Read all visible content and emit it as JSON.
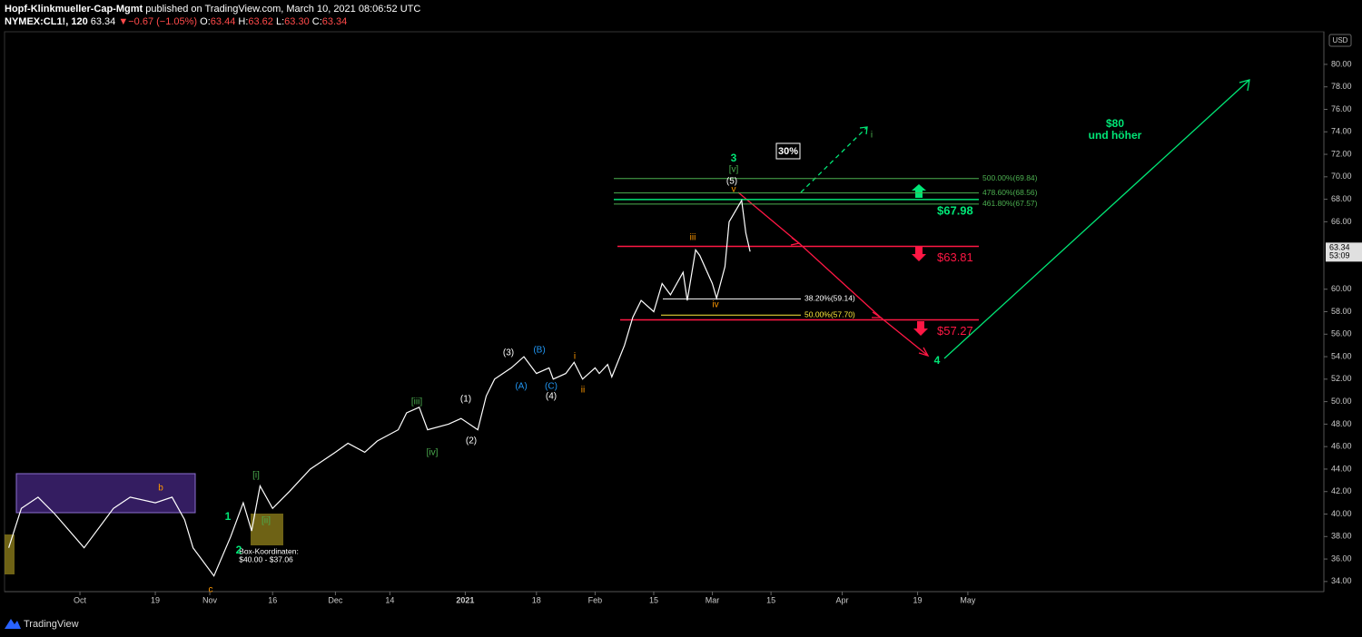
{
  "header": {
    "author": "Hopf-Klinkmueller-Cap-Mgmt",
    "published": "published on TradingView.com, March 10, 2021 08:06:52 UTC",
    "symbol": "NYMEX:CL1!, 120",
    "last": "63.34",
    "arrow": "▼",
    "change": "−0.67 (−1.05%)",
    "ohlc": [
      {
        "label": "O:",
        "value": "63.44"
      },
      {
        "label": "H:",
        "value": "63.62"
      },
      {
        "label": "L:",
        "value": "63.30"
      },
      {
        "label": "C:",
        "value": "63.34"
      }
    ]
  },
  "chart_data": {
    "type": "line",
    "color": "#ffffff",
    "x": [
      "2020-09-14",
      "2020-09-17",
      "2020-09-21",
      "2020-09-25",
      "2020-10-02",
      "2020-10-09",
      "2020-10-13",
      "2020-10-19",
      "2020-10-23",
      "2020-10-26",
      "2020-10-28",
      "2020-11-02",
      "2020-11-06",
      "2020-11-09",
      "2020-11-11",
      "2020-11-13",
      "2020-11-16",
      "2020-11-20",
      "2020-11-25",
      "2020-12-01",
      "2020-12-04",
      "2020-12-08",
      "2020-12-11",
      "2020-12-16",
      "2020-12-18",
      "2020-12-21",
      "2020-12-23",
      "2020-12-28",
      "2020-12-31",
      "2021-01-04",
      "2021-01-06",
      "2021-01-08",
      "2021-01-12",
      "2021-01-15",
      "2021-01-18",
      "2021-01-21",
      "2021-01-22",
      "2021-01-25",
      "2021-01-27",
      "2021-01-29",
      "2021-02-01",
      "2021-02-02",
      "2021-02-04",
      "2021-02-05",
      "2021-02-08",
      "2021-02-10",
      "2021-02-12",
      "2021-02-15",
      "2021-02-17",
      "2021-02-19",
      "2021-02-22",
      "2021-02-23",
      "2021-02-25",
      "2021-02-26",
      "2021-03-01",
      "2021-03-02",
      "2021-03-04",
      "2021-03-05",
      "2021-03-08",
      "2021-03-09",
      "2021-03-10"
    ],
    "values": [
      37,
      40.5,
      41.5,
      40,
      37,
      40.5,
      41.5,
      41,
      41.5,
      39.5,
      37,
      34.5,
      38,
      41,
      38.5,
      42.5,
      40.5,
      42,
      44,
      45.5,
      46.3,
      45.5,
      46.5,
      47.5,
      49,
      49.5,
      47.5,
      48,
      48.5,
      47.5,
      50.5,
      52,
      53,
      54,
      52.5,
      53,
      52,
      52.5,
      53.5,
      52,
      53,
      52.5,
      53.3,
      52.2,
      55,
      57.5,
      59,
      58,
      60.5,
      59.5,
      61.5,
      59,
      63.5,
      63,
      60.5,
      59.2,
      62,
      66,
      67.9,
      65,
      63.34
    ],
    "xlim": [
      "2020-09-13",
      "2021-07-25"
    ],
    "ylim": [
      33.1,
      82.9
    ],
    "currency": "USD",
    "yticks": [
      {
        "value": 34,
        "label": "34.00"
      },
      {
        "value": 36,
        "label": "36.00"
      },
      {
        "value": 38,
        "label": "38.00"
      },
      {
        "value": 40,
        "label": "40.00"
      },
      {
        "value": 42,
        "label": "42.00"
      },
      {
        "value": 44,
        "label": "44.00"
      },
      {
        "value": 46,
        "label": "46.00"
      },
      {
        "value": 48,
        "label": "48.00"
      },
      {
        "value": 50,
        "label": "50.00"
      },
      {
        "value": 52,
        "label": "52.00"
      },
      {
        "value": 54,
        "label": "54.00"
      },
      {
        "value": 56,
        "label": "56.00"
      },
      {
        "value": 58,
        "label": "58.00"
      },
      {
        "value": 60,
        "label": "60.00"
      },
      {
        "value": 66,
        "label": "66.00"
      },
      {
        "value": 68,
        "label": "68.00"
      },
      {
        "value": 70,
        "label": "70.00"
      },
      {
        "value": 72,
        "label": "72.00"
      },
      {
        "value": 74,
        "label": "74.00"
      },
      {
        "value": 76,
        "label": "76.00"
      },
      {
        "value": 78,
        "label": "78.00"
      },
      {
        "value": 80,
        "label": "80.00"
      }
    ],
    "xticks": [
      {
        "value": "2020-10-01",
        "label": "Oct"
      },
      {
        "value": "2020-10-19",
        "label": "19"
      },
      {
        "value": "2020-11-01",
        "label": "Nov"
      },
      {
        "value": "2020-11-16",
        "label": "16"
      },
      {
        "value": "2020-12-01",
        "label": "Dec"
      },
      {
        "value": "2020-12-14",
        "label": "14"
      },
      {
        "value": "2021-01-01",
        "label": "2021"
      },
      {
        "value": "2021-01-18",
        "label": "18"
      },
      {
        "value": "2021-02-01",
        "label": "Feb"
      },
      {
        "value": "2021-02-15",
        "label": "15"
      },
      {
        "value": "2021-03-01",
        "label": "Mar"
      },
      {
        "value": "2021-03-15",
        "label": "15"
      },
      {
        "value": "2021-04-01",
        "label": "Apr"
      },
      {
        "value": "2021-04-19",
        "label": "19"
      },
      {
        "value": "2021-05-01",
        "label": "May"
      }
    ],
    "price_tag": {
      "value": 63.34,
      "countdown": "53:09"
    },
    "levels": [
      {
        "label": "500.00%(69.84)",
        "value": 69.84,
        "color": "#4caf50"
      },
      {
        "label": "478.60%(68.56)",
        "value": 68.56,
        "color": "#4caf50"
      },
      {
        "label": "461.80%(67.57)",
        "value": 67.57,
        "color": "#4caf50"
      },
      {
        "label": "38.20%(59.14)",
        "value": 59.14,
        "color": "#ffffff"
      },
      {
        "label": "50.00%(57.70)",
        "value": 57.7,
        "color": "#ffeb3b"
      }
    ],
    "targets": [
      {
        "label": "$67.98",
        "value": 67.98,
        "color": "#00e676"
      },
      {
        "label": "$63.81",
        "value": 63.81,
        "color": "#ff1744"
      },
      {
        "label": "$57.27",
        "value": 57.27,
        "color": "#ff1744"
      }
    ],
    "annotations": [
      {
        "text": "3",
        "color": "#00e676"
      },
      {
        "text": "[v]",
        "color": "#4caf50"
      },
      {
        "text": "(5)",
        "color": "#ffffff"
      },
      {
        "text": "v",
        "color": "#ff9800"
      },
      {
        "text": "iii",
        "color": "#ff9800"
      },
      {
        "text": "iv",
        "color": "#ff9800"
      },
      {
        "text": "i",
        "color": "#ff9800"
      },
      {
        "text": "ii",
        "color": "#ff9800"
      },
      {
        "text": "(3)",
        "color": "#ffffff"
      },
      {
        "text": "(B)",
        "color": "#2196f3"
      },
      {
        "text": "(A)",
        "color": "#2196f3"
      },
      {
        "text": "(C)",
        "color": "#2196f3"
      },
      {
        "text": "(4)",
        "color": "#ffffff"
      },
      {
        "text": "(1)",
        "color": "#ffffff"
      },
      {
        "text": "(2)",
        "color": "#ffffff"
      },
      {
        "text": "[iii]",
        "color": "#4caf50"
      },
      {
        "text": "[iv]",
        "color": "#4caf50"
      },
      {
        "text": "[i]",
        "color": "#4caf50"
      },
      {
        "text": "[ii]",
        "color": "#4caf50"
      },
      {
        "text": "1",
        "color": "#00e676"
      },
      {
        "text": "2",
        "color": "#00e676"
      },
      {
        "text": "b",
        "color": "#ff9800"
      },
      {
        "text": "c",
        "color": "#ff9800"
      },
      {
        "text": "4",
        "color": "#00e676"
      },
      {
        "text": "i",
        "color": "#4caf50"
      }
    ],
    "notes": {
      "target_1": "$80",
      "target_2": "und höher",
      "percent": "30%",
      "box_title": "Box-Koordinaten:",
      "box_range": "$40.00 - $37.06"
    }
  },
  "footer": {
    "brand": "TradingView"
  }
}
